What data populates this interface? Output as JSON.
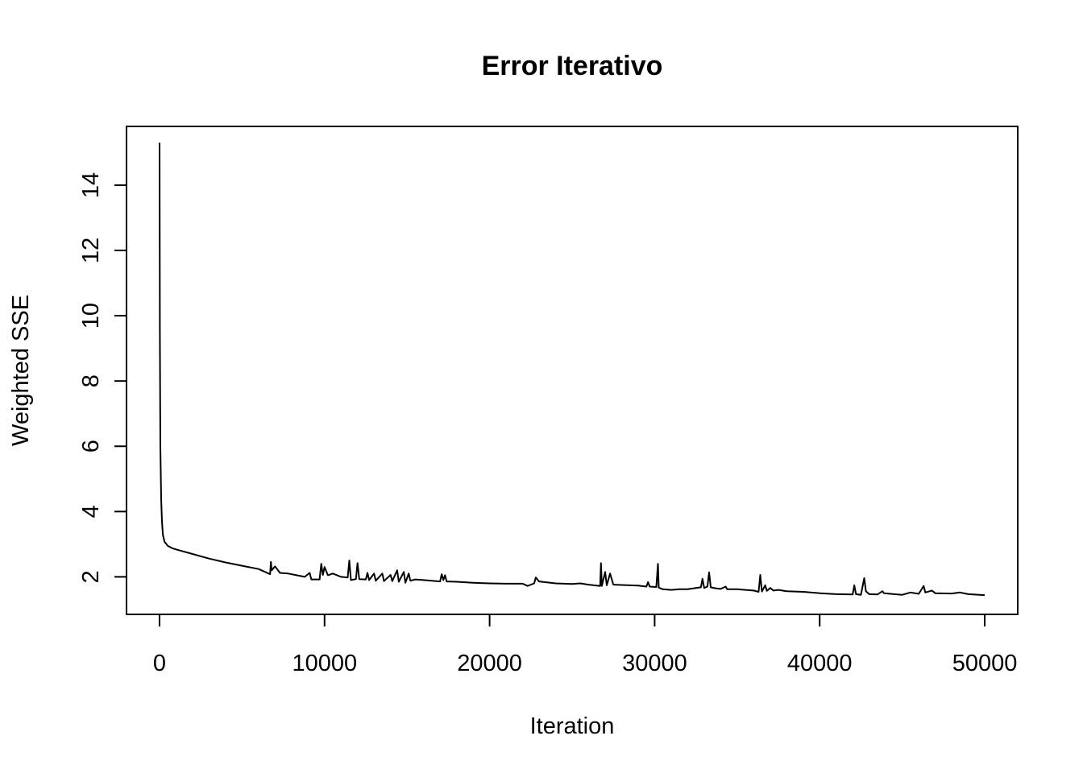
{
  "chart_data": {
    "type": "line",
    "title": "Error Iterativo",
    "xlabel": "Iteration",
    "ylabel": "Weighted SSE",
    "xlim": [
      -2000,
      52000
    ],
    "ylim": [
      0.85,
      15.8
    ],
    "xticks": [
      0,
      10000,
      20000,
      30000,
      40000,
      50000
    ],
    "yticks": [
      2,
      4,
      6,
      8,
      10,
      12,
      14
    ],
    "grid": false,
    "legend": "none",
    "line_color": "#000000",
    "series": [
      {
        "points": [
          [
            0,
            15.3
          ],
          [
            20,
            9.5
          ],
          [
            50,
            6.0
          ],
          [
            100,
            4.4
          ],
          [
            150,
            3.7
          ],
          [
            200,
            3.3
          ],
          [
            300,
            3.08
          ],
          [
            500,
            2.95
          ],
          [
            800,
            2.87
          ],
          [
            1000,
            2.84
          ],
          [
            2000,
            2.7
          ],
          [
            3000,
            2.56
          ],
          [
            4000,
            2.44
          ],
          [
            5000,
            2.34
          ],
          [
            6000,
            2.24
          ],
          [
            6700,
            2.08
          ],
          [
            6750,
            2.46
          ],
          [
            6800,
            2.2
          ],
          [
            7000,
            2.32
          ],
          [
            7300,
            2.12
          ],
          [
            7800,
            2.1
          ],
          [
            8300,
            2.05
          ],
          [
            8800,
            2.0
          ],
          [
            9100,
            2.12
          ],
          [
            9200,
            1.92
          ],
          [
            9700,
            1.92
          ],
          [
            9800,
            2.4
          ],
          [
            9900,
            2.06
          ],
          [
            10000,
            2.3
          ],
          [
            10200,
            2.05
          ],
          [
            10500,
            2.1
          ],
          [
            11000,
            2.0
          ],
          [
            11400,
            1.98
          ],
          [
            11500,
            2.5
          ],
          [
            11600,
            1.9
          ],
          [
            11900,
            1.93
          ],
          [
            12000,
            2.42
          ],
          [
            12100,
            1.93
          ],
          [
            12500,
            1.92
          ],
          [
            12600,
            2.12
          ],
          [
            12700,
            1.9
          ],
          [
            13000,
            2.1
          ],
          [
            13100,
            1.88
          ],
          [
            13500,
            2.1
          ],
          [
            13600,
            1.87
          ],
          [
            14000,
            2.06
          ],
          [
            14100,
            1.87
          ],
          [
            14400,
            2.2
          ],
          [
            14500,
            1.85
          ],
          [
            14800,
            2.15
          ],
          [
            14900,
            1.82
          ],
          [
            15100,
            2.1
          ],
          [
            15200,
            1.88
          ],
          [
            15500,
            1.92
          ],
          [
            16000,
            1.9
          ],
          [
            16500,
            1.88
          ],
          [
            17000,
            1.86
          ],
          [
            17100,
            2.08
          ],
          [
            17200,
            1.9
          ],
          [
            17300,
            2.05
          ],
          [
            17400,
            1.86
          ],
          [
            18000,
            1.85
          ],
          [
            19000,
            1.82
          ],
          [
            20000,
            1.8
          ],
          [
            21000,
            1.79
          ],
          [
            22000,
            1.79
          ],
          [
            22300,
            1.72
          ],
          [
            22700,
            1.8
          ],
          [
            22800,
            1.98
          ],
          [
            23000,
            1.86
          ],
          [
            24000,
            1.8
          ],
          [
            25000,
            1.78
          ],
          [
            25500,
            1.8
          ],
          [
            26000,
            1.76
          ],
          [
            26700,
            1.72
          ],
          [
            26750,
            2.42
          ],
          [
            26800,
            1.72
          ],
          [
            27000,
            2.15
          ],
          [
            27100,
            1.74
          ],
          [
            27300,
            2.1
          ],
          [
            27500,
            1.76
          ],
          [
            28000,
            1.75
          ],
          [
            29000,
            1.73
          ],
          [
            29500,
            1.7
          ],
          [
            29600,
            1.84
          ],
          [
            29700,
            1.7
          ],
          [
            30100,
            1.69
          ],
          [
            30200,
            2.4
          ],
          [
            30250,
            1.67
          ],
          [
            30500,
            1.62
          ],
          [
            31000,
            1.6
          ],
          [
            31500,
            1.62
          ],
          [
            32000,
            1.62
          ],
          [
            32500,
            1.66
          ],
          [
            32800,
            1.68
          ],
          [
            32900,
            1.94
          ],
          [
            33000,
            1.66
          ],
          [
            33200,
            1.7
          ],
          [
            33300,
            2.14
          ],
          [
            33400,
            1.68
          ],
          [
            33700,
            1.65
          ],
          [
            34000,
            1.63
          ],
          [
            34300,
            1.7
          ],
          [
            34400,
            1.62
          ],
          [
            35000,
            1.62
          ],
          [
            35500,
            1.6
          ],
          [
            36000,
            1.58
          ],
          [
            36300,
            1.54
          ],
          [
            36400,
            2.06
          ],
          [
            36500,
            1.55
          ],
          [
            36700,
            1.74
          ],
          [
            36800,
            1.57
          ],
          [
            37000,
            1.66
          ],
          [
            37200,
            1.58
          ],
          [
            37500,
            1.6
          ],
          [
            38000,
            1.56
          ],
          [
            39000,
            1.54
          ],
          [
            40000,
            1.5
          ],
          [
            41000,
            1.47
          ],
          [
            42000,
            1.46
          ],
          [
            42100,
            1.74
          ],
          [
            42200,
            1.47
          ],
          [
            42500,
            1.45
          ],
          [
            42700,
            1.96
          ],
          [
            42800,
            1.56
          ],
          [
            43000,
            1.47
          ],
          [
            43500,
            1.46
          ],
          [
            43800,
            1.56
          ],
          [
            43900,
            1.5
          ],
          [
            44500,
            1.47
          ],
          [
            45000,
            1.45
          ],
          [
            45500,
            1.52
          ],
          [
            46000,
            1.48
          ],
          [
            46300,
            1.72
          ],
          [
            46400,
            1.52
          ],
          [
            46800,
            1.58
          ],
          [
            47000,
            1.5
          ],
          [
            48000,
            1.49
          ],
          [
            48500,
            1.52
          ],
          [
            49000,
            1.47
          ],
          [
            50000,
            1.44
          ]
        ]
      }
    ]
  }
}
